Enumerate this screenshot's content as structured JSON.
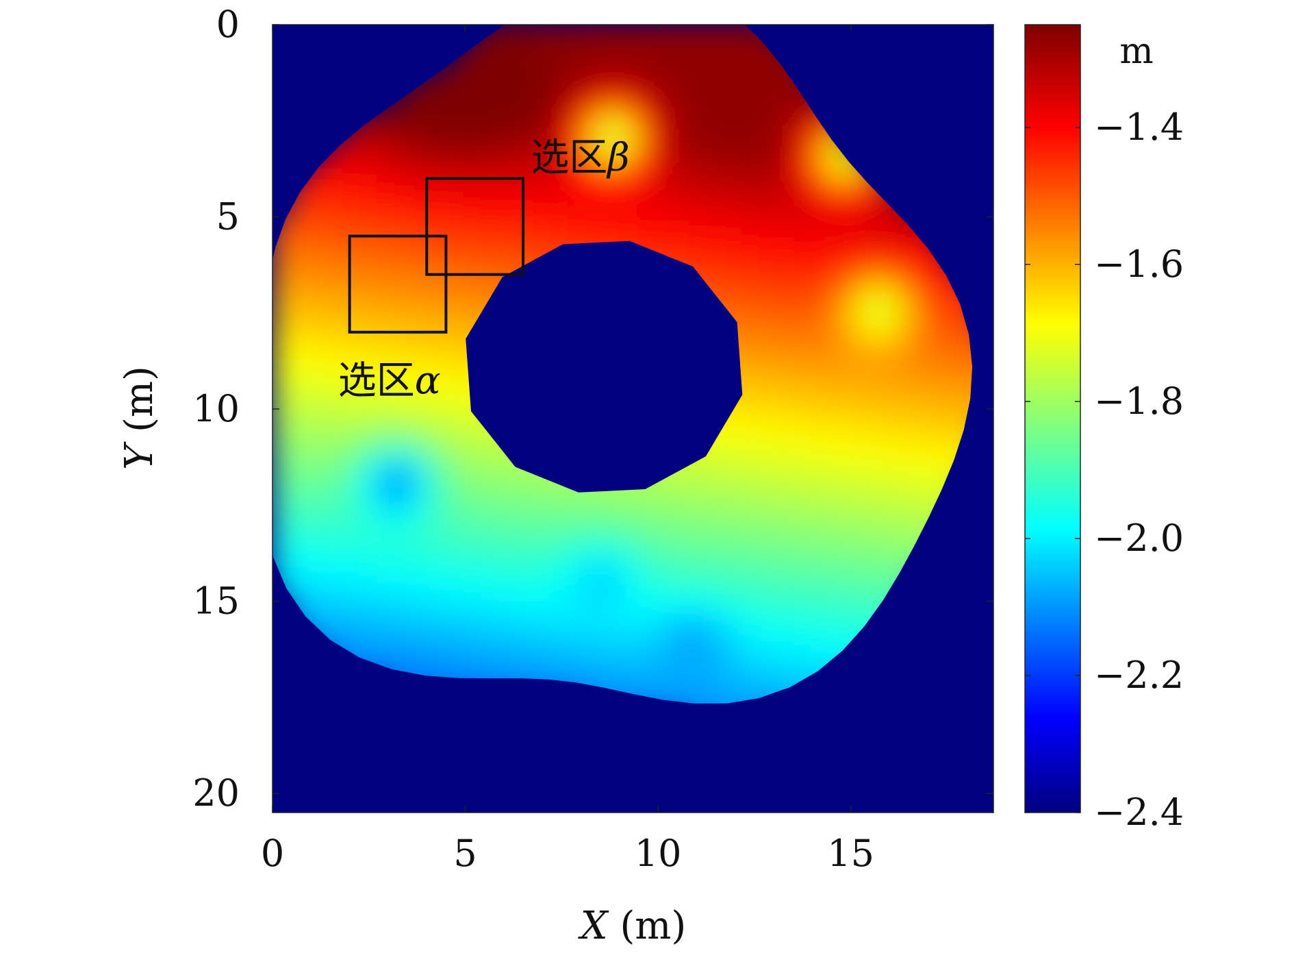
{
  "chart_data": {
    "type": "heatmap",
    "title": "",
    "xlabel": {
      "var": "X",
      "unit": "(m)"
    },
    "ylabel": {
      "var": "Y",
      "unit": "(m)"
    },
    "xlim": [
      0,
      18.7
    ],
    "ylim": [
      20.5,
      0
    ],
    "y_axis_inverted": true,
    "xticks": [
      0,
      5,
      10,
      15
    ],
    "yticks": [
      0,
      5,
      10,
      15,
      20
    ],
    "colormap": "jet",
    "background_color": "#000080",
    "colorbar": {
      "unit": "m",
      "range": [
        -2.4,
        -1.25
      ],
      "ticks": [
        -1.4,
        -1.6,
        -1.8,
        -2.0,
        -2.2,
        -2.4
      ],
      "tick_labels": [
        "−1.4",
        "−1.6",
        "−1.8",
        "−2.0",
        "−2.2",
        "−2.4"
      ]
    },
    "surface": {
      "description_values": "elevation in metres",
      "outer_region_approx_radius_m": 9.2,
      "inner_hole_center": [
        8.6,
        8.9
      ],
      "inner_hole_radius_m": 3.5,
      "high_area": {
        "center": [
          4.3,
          1.8
        ],
        "value": -1.27
      },
      "low_area": {
        "center": [
          1.5,
          19.5
        ],
        "value": -2.3
      },
      "local_depressions": [
        {
          "center": [
            3.0,
            11.7
          ],
          "value": -2.15
        },
        {
          "center": [
            8.3,
            14.2
          ],
          "value": -2.05
        },
        {
          "center": [
            10.7,
            15.9
          ],
          "value": -2.1
        },
        {
          "center": [
            8.6,
            2.7
          ],
          "value": -1.85
        },
        {
          "center": [
            14.6,
            3.2
          ],
          "value": -1.82
        },
        {
          "center": [
            15.5,
            7.2
          ],
          "value": -1.78
        }
      ]
    },
    "regions": [
      {
        "name_text": "选区",
        "greek": "α",
        "x": [
          2,
          4.5
        ],
        "y": [
          5.5,
          8
        ],
        "label_position": [
          1.7,
          9.6
        ]
      },
      {
        "name_text": "选区",
        "greek": "β",
        "x": [
          4,
          6.5
        ],
        "y": [
          4,
          6.5
        ],
        "label_position": [
          6.7,
          3.8
        ]
      }
    ]
  }
}
